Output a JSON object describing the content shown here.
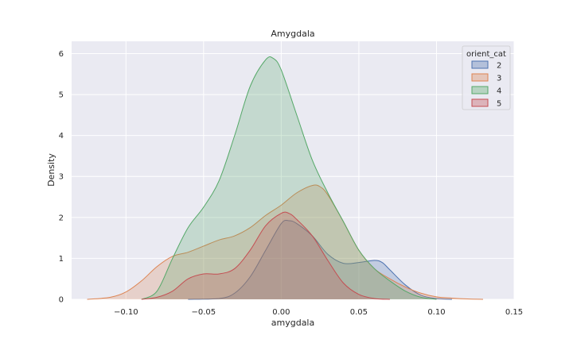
{
  "chart_data": {
    "type": "area",
    "title": "Amygdala",
    "xlabel": "amygdala",
    "ylabel": "Density",
    "xlim": [
      -0.135,
      0.15
    ],
    "ylim": [
      0,
      6.3
    ],
    "xticks": [
      -0.1,
      -0.05,
      0.0,
      0.05,
      0.1,
      0.15
    ],
    "xtick_labels": [
      "−0.10",
      "−0.05",
      "0.00",
      "0.05",
      "0.10",
      "0.15"
    ],
    "yticks": [
      0,
      1,
      2,
      3,
      4,
      5,
      6
    ],
    "ytick_labels": [
      "0",
      "1",
      "2",
      "3",
      "4",
      "5",
      "6"
    ],
    "grid": true,
    "legend": {
      "title": "orient_cat",
      "placement": "top-right"
    },
    "series": [
      {
        "name": "2",
        "color": "#4c72b0",
        "points": [
          [
            -0.06,
            0
          ],
          [
            -0.04,
            0.02
          ],
          [
            -0.03,
            0.15
          ],
          [
            -0.02,
            0.55
          ],
          [
            -0.01,
            1.2
          ],
          [
            0.0,
            1.85
          ],
          [
            0.005,
            1.92
          ],
          [
            0.01,
            1.85
          ],
          [
            0.02,
            1.55
          ],
          [
            0.03,
            1.1
          ],
          [
            0.04,
            0.88
          ],
          [
            0.05,
            0.9
          ],
          [
            0.06,
            0.95
          ],
          [
            0.065,
            0.9
          ],
          [
            0.07,
            0.72
          ],
          [
            0.08,
            0.35
          ],
          [
            0.09,
            0.1
          ],
          [
            0.1,
            0.02
          ],
          [
            0.11,
            0
          ]
        ]
      },
      {
        "name": "3",
        "color": "#dd8452",
        "points": [
          [
            -0.125,
            0
          ],
          [
            -0.11,
            0.05
          ],
          [
            -0.1,
            0.18
          ],
          [
            -0.09,
            0.45
          ],
          [
            -0.08,
            0.8
          ],
          [
            -0.07,
            1.05
          ],
          [
            -0.06,
            1.15
          ],
          [
            -0.05,
            1.3
          ],
          [
            -0.04,
            1.45
          ],
          [
            -0.03,
            1.55
          ],
          [
            -0.02,
            1.75
          ],
          [
            -0.01,
            2.05
          ],
          [
            0.0,
            2.3
          ],
          [
            0.01,
            2.6
          ],
          [
            0.02,
            2.78
          ],
          [
            0.025,
            2.75
          ],
          [
            0.03,
            2.55
          ],
          [
            0.04,
            1.9
          ],
          [
            0.05,
            1.2
          ],
          [
            0.06,
            0.75
          ],
          [
            0.07,
            0.5
          ],
          [
            0.08,
            0.3
          ],
          [
            0.09,
            0.15
          ],
          [
            0.1,
            0.06
          ],
          [
            0.11,
            0.03
          ],
          [
            0.12,
            0.01
          ],
          [
            0.13,
            0
          ]
        ]
      },
      {
        "name": "4",
        "color": "#55a868",
        "points": [
          [
            -0.09,
            0
          ],
          [
            -0.08,
            0.2
          ],
          [
            -0.07,
            1.0
          ],
          [
            -0.06,
            1.75
          ],
          [
            -0.05,
            2.25
          ],
          [
            -0.04,
            2.9
          ],
          [
            -0.03,
            4.0
          ],
          [
            -0.02,
            5.2
          ],
          [
            -0.01,
            5.85
          ],
          [
            -0.005,
            5.88
          ],
          [
            0.0,
            5.6
          ],
          [
            0.01,
            4.5
          ],
          [
            0.02,
            3.4
          ],
          [
            0.03,
            2.6
          ],
          [
            0.04,
            1.9
          ],
          [
            0.05,
            1.2
          ],
          [
            0.06,
            0.75
          ],
          [
            0.07,
            0.45
          ],
          [
            0.08,
            0.2
          ],
          [
            0.09,
            0.05
          ],
          [
            0.1,
            0
          ]
        ]
      },
      {
        "name": "5",
        "color": "#c44e52",
        "points": [
          [
            -0.09,
            0
          ],
          [
            -0.08,
            0.05
          ],
          [
            -0.07,
            0.2
          ],
          [
            -0.06,
            0.5
          ],
          [
            -0.05,
            0.62
          ],
          [
            -0.04,
            0.62
          ],
          [
            -0.03,
            0.75
          ],
          [
            -0.02,
            1.2
          ],
          [
            -0.01,
            1.8
          ],
          [
            0.0,
            2.1
          ],
          [
            0.005,
            2.1
          ],
          [
            0.01,
            1.95
          ],
          [
            0.02,
            1.55
          ],
          [
            0.03,
            0.95
          ],
          [
            0.04,
            0.4
          ],
          [
            0.05,
            0.12
          ],
          [
            0.06,
            0.02
          ],
          [
            0.07,
            0
          ]
        ]
      }
    ]
  }
}
